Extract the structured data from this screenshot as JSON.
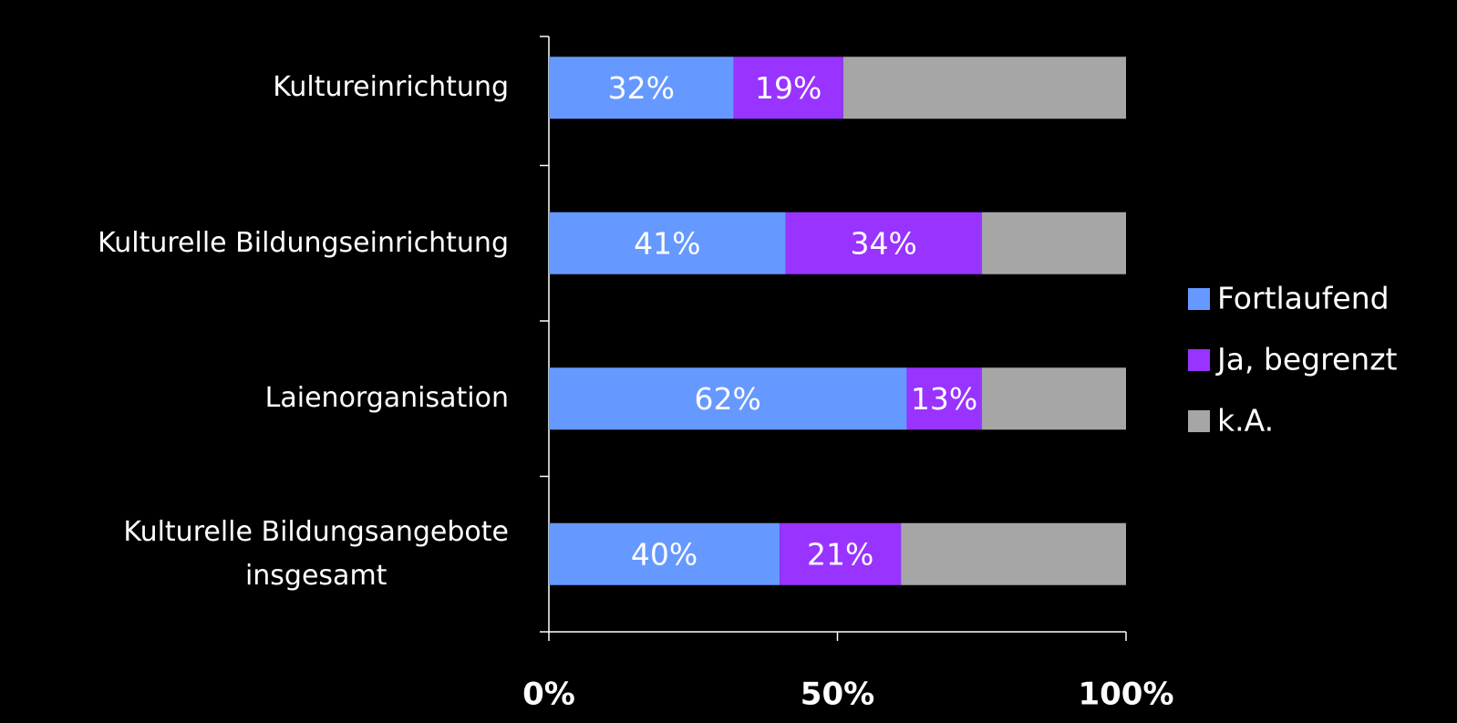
{
  "chart_data": {
    "type": "stacked_bar_horizontal",
    "categories": [
      "Kultureinrichtung",
      "Kulturelle Bildungseinrichtung",
      "Laienorganisation",
      "Kulturelle Bildungsangebote\ninsgesamt"
    ],
    "series": [
      {
        "name": "Fortlaufend",
        "color": "#6699ff",
        "values": [
          32,
          41,
          62,
          40
        ],
        "value_labels": [
          "32%",
          "41%",
          "62%",
          "40%"
        ]
      },
      {
        "name": "Ja, begrenzt",
        "color": "#9933ff",
        "values": [
          19,
          34,
          13,
          21
        ],
        "value_labels": [
          "19%",
          "34%",
          "13%",
          "21%"
        ]
      },
      {
        "name": "k.A.",
        "color": "#a6a6a6",
        "values": [
          49,
          25,
          25,
          39
        ]
      }
    ],
    "xlim": [
      0,
      100
    ],
    "xticks": [
      {
        "value": 0,
        "label": "0%"
      },
      {
        "value": 50,
        "label": "50%"
      },
      {
        "value": 100,
        "label": "100%"
      }
    ],
    "legend": "right"
  }
}
